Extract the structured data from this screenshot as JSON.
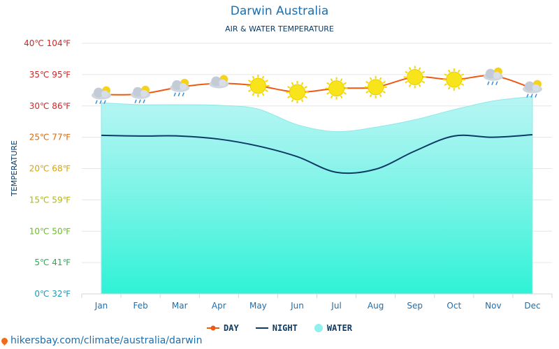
{
  "header": {
    "title": "Darwin Australia",
    "subtitle": "AIR & WATER TEMPERATURE"
  },
  "chart_data": {
    "type": "line",
    "ylabel": "TEMPERATURE",
    "ylim": [
      0,
      40
    ],
    "y_ticks": [
      {
        "value": 40,
        "label": "40℃ 104℉",
        "color": "#e02020"
      },
      {
        "value": 35,
        "label": "35℃ 95℉",
        "color": "#e02020"
      },
      {
        "value": 30,
        "label": "30℃ 86℉",
        "color": "#e02020"
      },
      {
        "value": 25,
        "label": "25℃ 77℉",
        "color": "#e06a00"
      },
      {
        "value": 20,
        "label": "20℃ 68℉",
        "color": "#d9a400"
      },
      {
        "value": 15,
        "label": "15℃ 59℉",
        "color": "#b5b800"
      },
      {
        "value": 10,
        "label": "10℃ 50℉",
        "color": "#66c21a"
      },
      {
        "value": 5,
        "label": "5℃ 41℉",
        "color": "#22b04a"
      },
      {
        "value": 0,
        "label": "0℃ 32℉",
        "color": "#1d9bb5"
      }
    ],
    "categories": [
      "Jan",
      "Feb",
      "Mar",
      "Apr",
      "May",
      "Jun",
      "Jul",
      "Aug",
      "Sep",
      "Oct",
      "Nov",
      "Dec"
    ],
    "series": [
      {
        "name": "DAY",
        "values": [
          31.8,
          31.9,
          33.0,
          33.6,
          33.2,
          32.2,
          32.8,
          33.0,
          34.6,
          34.2,
          34.8,
          32.8
        ]
      },
      {
        "name": "NIGHT",
        "values": [
          25.3,
          25.2,
          25.2,
          24.7,
          23.6,
          21.9,
          19.4,
          19.9,
          22.8,
          25.2,
          25.0,
          25.4
        ]
      },
      {
        "name": "WATER",
        "values": [
          30.5,
          30.2,
          30.2,
          30.1,
          29.5,
          27.0,
          25.9,
          26.6,
          27.8,
          29.4,
          30.8,
          31.5
        ]
      }
    ],
    "weather_icons": [
      "cloud-rain-sun-icon",
      "cloud-rain-sun-icon",
      "cloud-rain-sun-icon",
      "cloud-sun-icon",
      "sun-icon",
      "sun-icon",
      "sun-icon",
      "sun-icon",
      "sun-icon",
      "sun-icon",
      "cloud-rain-sun-icon",
      "cloud-rain-sun-icon"
    ],
    "colors": {
      "day": "#ee5a12",
      "night": "#0d3b66",
      "water_top": "#9ff2f0",
      "water_bottom": "#2ef2d6",
      "grid": "#e6e6e6",
      "axis_text": "#1b6fae"
    },
    "grid": true,
    "legend_position": "bottom"
  },
  "legend": {
    "day": "DAY",
    "night": "NIGHT",
    "water": "WATER"
  },
  "footer": {
    "source": "hikersbay.com/climate/australia/darwin"
  }
}
